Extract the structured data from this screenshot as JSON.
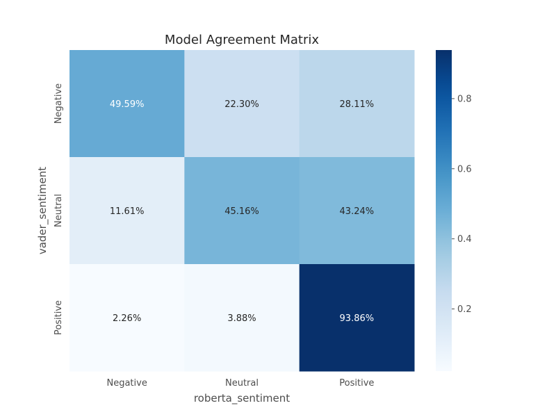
{
  "chart_data": {
    "type": "heatmap",
    "title": "Model Agreement Matrix",
    "xlabel": "roberta_sentiment",
    "ylabel": "vader_sentiment",
    "x_categories": [
      "Negative",
      "Neutral",
      "Positive"
    ],
    "y_categories": [
      "Negative",
      "Neutral",
      "Positive"
    ],
    "values": [
      [
        0.4959,
        0.223,
        0.2811
      ],
      [
        0.1161,
        0.4516,
        0.4324
      ],
      [
        0.0226,
        0.0388,
        0.9386
      ]
    ],
    "cell_labels": [
      [
        "49.59%",
        "22.30%",
        "28.11%"
      ],
      [
        "11.61%",
        "45.16%",
        "43.24%"
      ],
      [
        "2.26%",
        "3.88%",
        "93.86%"
      ]
    ],
    "colormap": "Blues",
    "colorbar": {
      "range": [
        0.0226,
        0.9386
      ],
      "ticks": [
        0.2,
        0.4,
        0.6,
        0.8
      ],
      "tick_labels": [
        "0.2",
        "0.4",
        "0.6",
        "0.8"
      ]
    },
    "grid": false,
    "legend": "colorbar-right"
  }
}
